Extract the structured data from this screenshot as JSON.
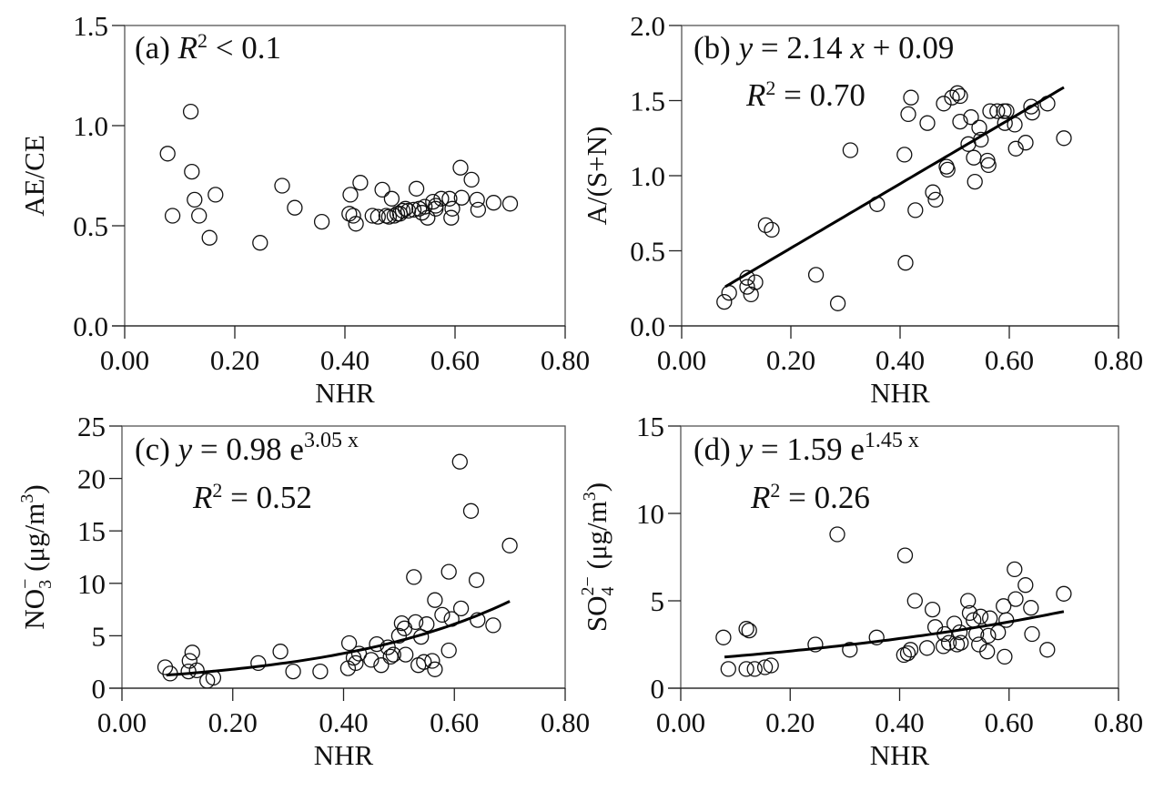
{
  "chart_data": [
    {
      "id": "a",
      "type": "scatter",
      "panel_label": "(a)",
      "annotation": {
        "r2_text": "R² < 0.1",
        "r_symbol": "R",
        "r2_rest": " < 0.1"
      },
      "xlabel": "NHR",
      "ylabel": "AE/CE",
      "xlim": [
        0,
        0.8
      ],
      "ylim": [
        0,
        1.5
      ],
      "xticks": [
        "0.00",
        "0.20",
        "0.40",
        "0.60",
        "0.80"
      ],
      "xtick_values": [
        0,
        0.2,
        0.4,
        0.6,
        0.8
      ],
      "yticks": [
        "0.0",
        "0.5",
        "1.0",
        "1.5"
      ],
      "ytick_values": [
        0,
        0.5,
        1.0,
        1.5
      ],
      "fit": null,
      "points": [
        [
          0.078,
          0.86
        ],
        [
          0.087,
          0.55
        ],
        [
          0.12,
          1.07
        ],
        [
          0.122,
          0.77
        ],
        [
          0.127,
          0.63
        ],
        [
          0.135,
          0.55
        ],
        [
          0.154,
          0.44
        ],
        [
          0.165,
          0.655
        ],
        [
          0.246,
          0.415
        ],
        [
          0.286,
          0.7
        ],
        [
          0.309,
          0.59
        ],
        [
          0.358,
          0.52
        ],
        [
          0.408,
          0.56
        ],
        [
          0.41,
          0.655
        ],
        [
          0.415,
          0.55
        ],
        [
          0.42,
          0.51
        ],
        [
          0.428,
          0.715
        ],
        [
          0.45,
          0.55
        ],
        [
          0.46,
          0.545
        ],
        [
          0.468,
          0.68
        ],
        [
          0.475,
          0.55
        ],
        [
          0.48,
          0.545
        ],
        [
          0.485,
          0.635
        ],
        [
          0.49,
          0.55
        ],
        [
          0.495,
          0.56
        ],
        [
          0.5,
          0.56
        ],
        [
          0.505,
          0.575
        ],
        [
          0.51,
          0.585
        ],
        [
          0.515,
          0.575
        ],
        [
          0.525,
          0.58
        ],
        [
          0.53,
          0.685
        ],
        [
          0.535,
          0.585
        ],
        [
          0.54,
          0.565
        ],
        [
          0.545,
          0.595
        ],
        [
          0.55,
          0.54
        ],
        [
          0.56,
          0.62
        ],
        [
          0.565,
          0.585
        ],
        [
          0.565,
          0.6
        ],
        [
          0.575,
          0.635
        ],
        [
          0.59,
          0.635
        ],
        [
          0.593,
          0.54
        ],
        [
          0.595,
          0.585
        ],
        [
          0.61,
          0.79
        ],
        [
          0.612,
          0.64
        ],
        [
          0.63,
          0.73
        ],
        [
          0.64,
          0.63
        ],
        [
          0.642,
          0.58
        ],
        [
          0.67,
          0.615
        ],
        [
          0.7,
          0.61
        ]
      ]
    },
    {
      "id": "b",
      "type": "scatter",
      "panel_label": "(b)",
      "annotation": {
        "eq_y": "y",
        "eq_mid": " = 2.14 ",
        "eq_x": "x",
        "eq_end": " + 0.09",
        "r_symbol": "R",
        "r2_rest": " = 0.70"
      },
      "xlabel": "NHR",
      "ylabel": "A/(S+N)",
      "xlim": [
        0,
        0.8
      ],
      "ylim": [
        0,
        2.0
      ],
      "xticks": [
        "0.00",
        "0.20",
        "0.40",
        "0.60",
        "0.80"
      ],
      "xtick_values": [
        0,
        0.2,
        0.4,
        0.6,
        0.8
      ],
      "yticks": [
        "0.0",
        "0.5",
        "1.0",
        "1.5",
        "2.0"
      ],
      "ytick_values": [
        0,
        0.5,
        1.0,
        1.5,
        2.0
      ],
      "fit": {
        "kind": "linear",
        "a": 2.14,
        "b": 0.09,
        "xrange": [
          0.08,
          0.7
        ]
      },
      "points": [
        [
          0.078,
          0.16
        ],
        [
          0.087,
          0.22
        ],
        [
          0.12,
          0.32
        ],
        [
          0.12,
          0.26
        ],
        [
          0.127,
          0.21
        ],
        [
          0.135,
          0.29
        ],
        [
          0.154,
          0.67
        ],
        [
          0.165,
          0.64
        ],
        [
          0.246,
          0.34
        ],
        [
          0.286,
          0.15
        ],
        [
          0.309,
          1.17
        ],
        [
          0.358,
          0.81
        ],
        [
          0.408,
          1.14
        ],
        [
          0.41,
          0.42
        ],
        [
          0.415,
          1.41
        ],
        [
          0.42,
          1.52
        ],
        [
          0.428,
          0.77
        ],
        [
          0.45,
          1.35
        ],
        [
          0.46,
          0.89
        ],
        [
          0.465,
          0.84
        ],
        [
          0.48,
          1.48
        ],
        [
          0.485,
          1.06
        ],
        [
          0.487,
          1.04
        ],
        [
          0.495,
          1.52
        ],
        [
          0.505,
          1.55
        ],
        [
          0.51,
          1.53
        ],
        [
          0.51,
          1.36
        ],
        [
          0.525,
          1.21
        ],
        [
          0.53,
          1.39
        ],
        [
          0.535,
          1.12
        ],
        [
          0.537,
          0.96
        ],
        [
          0.545,
          1.32
        ],
        [
          0.548,
          1.24
        ],
        [
          0.56,
          1.1
        ],
        [
          0.562,
          1.07
        ],
        [
          0.565,
          1.43
        ],
        [
          0.578,
          1.43
        ],
        [
          0.59,
          1.43
        ],
        [
          0.592,
          1.35
        ],
        [
          0.595,
          1.43
        ],
        [
          0.61,
          1.34
        ],
        [
          0.612,
          1.18
        ],
        [
          0.63,
          1.22
        ],
        [
          0.64,
          1.46
        ],
        [
          0.642,
          1.42
        ],
        [
          0.67,
          1.48
        ],
        [
          0.7,
          1.25
        ]
      ]
    },
    {
      "id": "c",
      "type": "scatter",
      "panel_label": "(c)",
      "annotation": {
        "eq_y": "y",
        "eq_mid": " = 0.98 e",
        "eq_sup": "3.05 x",
        "r_symbol": "R",
        "r2_rest": " = 0.52"
      },
      "xlabel": "NHR",
      "ylabel_parts": {
        "main": "NO",
        "sub": "3",
        "sup": "−",
        "unit": " (μg/m",
        "unit_sup": "3",
        "close": ")"
      },
      "xlim": [
        0,
        0.8
      ],
      "ylim": [
        0,
        25
      ],
      "xticks": [
        "0.00",
        "0.20",
        "0.40",
        "0.60",
        "0.80"
      ],
      "xtick_values": [
        0,
        0.2,
        0.4,
        0.6,
        0.8
      ],
      "yticks": [
        "0",
        "5",
        "10",
        "15",
        "20",
        "25"
      ],
      "ytick_values": [
        0,
        5,
        10,
        15,
        20,
        25
      ],
      "fit": {
        "kind": "exp",
        "a": 0.98,
        "b": 3.05,
        "xrange": [
          0.08,
          0.7
        ]
      },
      "points": [
        [
          0.078,
          2.0
        ],
        [
          0.087,
          1.4
        ],
        [
          0.12,
          1.6
        ],
        [
          0.122,
          2.6
        ],
        [
          0.127,
          3.4
        ],
        [
          0.135,
          1.7
        ],
        [
          0.154,
          0.7
        ],
        [
          0.165,
          1.0
        ],
        [
          0.246,
          2.4
        ],
        [
          0.286,
          3.5
        ],
        [
          0.309,
          1.6
        ],
        [
          0.358,
          1.6
        ],
        [
          0.408,
          1.9
        ],
        [
          0.41,
          4.3
        ],
        [
          0.418,
          2.9
        ],
        [
          0.422,
          2.4
        ],
        [
          0.428,
          3.3
        ],
        [
          0.45,
          2.7
        ],
        [
          0.46,
          4.2
        ],
        [
          0.468,
          2.2
        ],
        [
          0.48,
          3.9
        ],
        [
          0.485,
          3.0
        ],
        [
          0.49,
          3.2
        ],
        [
          0.5,
          5.0
        ],
        [
          0.505,
          6.2
        ],
        [
          0.51,
          5.7
        ],
        [
          0.512,
          3.2
        ],
        [
          0.527,
          10.6
        ],
        [
          0.53,
          6.3
        ],
        [
          0.535,
          2.2
        ],
        [
          0.54,
          4.9
        ],
        [
          0.545,
          2.5
        ],
        [
          0.55,
          6.1
        ],
        [
          0.56,
          2.6
        ],
        [
          0.565,
          1.8
        ],
        [
          0.565,
          8.4
        ],
        [
          0.578,
          7.0
        ],
        [
          0.59,
          3.6
        ],
        [
          0.59,
          11.1
        ],
        [
          0.595,
          6.6
        ],
        [
          0.61,
          21.6
        ],
        [
          0.612,
          7.6
        ],
        [
          0.63,
          16.9
        ],
        [
          0.64,
          10.3
        ],
        [
          0.642,
          6.5
        ],
        [
          0.67,
          6.0
        ],
        [
          0.7,
          13.6
        ]
      ]
    },
    {
      "id": "d",
      "type": "scatter",
      "panel_label": "(d)",
      "annotation": {
        "eq_y": "y",
        "eq_mid": " = 1.59 e",
        "eq_sup": "1.45 x",
        "r_symbol": "R",
        "r2_rest": " = 0.26"
      },
      "xlabel": "NHR",
      "ylabel_parts": {
        "main": "SO",
        "sub": "4",
        "sup": "2−",
        "unit": " (μg/m",
        "unit_sup": "3",
        "close": ")"
      },
      "xlim": [
        0,
        0.8
      ],
      "ylim": [
        0,
        15
      ],
      "xticks": [
        "0.00",
        "0.20",
        "0.40",
        "0.60",
        "0.80"
      ],
      "xtick_values": [
        0,
        0.2,
        0.4,
        0.6,
        0.8
      ],
      "yticks": [
        "0",
        "5",
        "10",
        "15"
      ],
      "ytick_values": [
        0,
        5,
        10,
        15
      ],
      "fit": {
        "kind": "exp",
        "a": 1.59,
        "b": 1.45,
        "xrange": [
          0.08,
          0.7
        ]
      },
      "points": [
        [
          0.078,
          2.9
        ],
        [
          0.087,
          1.1
        ],
        [
          0.12,
          1.1
        ],
        [
          0.12,
          3.4
        ],
        [
          0.125,
          3.3
        ],
        [
          0.135,
          1.1
        ],
        [
          0.154,
          1.2
        ],
        [
          0.165,
          1.3
        ],
        [
          0.246,
          2.5
        ],
        [
          0.286,
          8.8
        ],
        [
          0.309,
          2.2
        ],
        [
          0.358,
          2.9
        ],
        [
          0.408,
          1.9
        ],
        [
          0.41,
          7.6
        ],
        [
          0.415,
          2.0
        ],
        [
          0.42,
          2.2
        ],
        [
          0.428,
          5.0
        ],
        [
          0.45,
          2.3
        ],
        [
          0.46,
          4.5
        ],
        [
          0.465,
          3.5
        ],
        [
          0.48,
          2.4
        ],
        [
          0.482,
          3.1
        ],
        [
          0.49,
          2.6
        ],
        [
          0.5,
          3.7
        ],
        [
          0.505,
          2.5
        ],
        [
          0.51,
          3.2
        ],
        [
          0.512,
          2.6
        ],
        [
          0.525,
          5.0
        ],
        [
          0.528,
          4.3
        ],
        [
          0.535,
          3.9
        ],
        [
          0.54,
          3.1
        ],
        [
          0.545,
          2.5
        ],
        [
          0.548,
          4.1
        ],
        [
          0.56,
          2.1
        ],
        [
          0.562,
          3.0
        ],
        [
          0.565,
          4.0
        ],
        [
          0.58,
          3.2
        ],
        [
          0.59,
          4.7
        ],
        [
          0.592,
          1.8
        ],
        [
          0.595,
          3.9
        ],
        [
          0.61,
          6.8
        ],
        [
          0.612,
          5.1
        ],
        [
          0.63,
          5.9
        ],
        [
          0.64,
          4.6
        ],
        [
          0.642,
          3.1
        ],
        [
          0.67,
          2.2
        ],
        [
          0.7,
          5.4
        ]
      ]
    }
  ]
}
